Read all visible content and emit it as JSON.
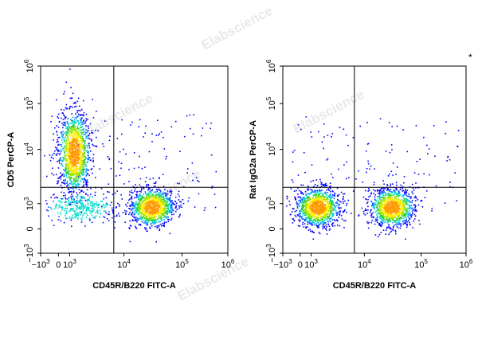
{
  "watermark": "Elabscience",
  "colors": {
    "density": [
      "#0000ff",
      "#0055ff",
      "#00aaff",
      "#00ddcc",
      "#33cc33",
      "#99e600",
      "#ffee00",
      "#ff9900",
      "#ff3300"
    ],
    "gate": "#000000",
    "frame": "#000000"
  },
  "footnote_mark": "*",
  "chart_data": [
    {
      "type": "scatter",
      "title": "",
      "xlabel": "CD45R/B220 FITC-A",
      "ylabel": "CD5 PerCP-A",
      "x_scale": "biexponential",
      "y_scale": "biexponential",
      "x_ticks": [
        {
          "base": "−10",
          "exp": "3"
        },
        {
          "base": "0",
          "exp": ""
        },
        {
          "base": "10",
          "exp": "3"
        },
        {
          "base": "10",
          "exp": "4"
        },
        {
          "base": "10",
          "exp": "5"
        },
        {
          "base": "10",
          "exp": "6"
        }
      ],
      "y_ticks": [
        {
          "base": "−10",
          "exp": "3"
        },
        {
          "base": "0",
          "exp": ""
        },
        {
          "base": "10",
          "exp": "3"
        },
        {
          "base": "10",
          "exp": "4"
        },
        {
          "base": "10",
          "exp": "5"
        },
        {
          "base": "10",
          "exp": "6"
        }
      ],
      "quadrant_gate": {
        "x": 6500,
        "y": 2000
      },
      "populations": [
        {
          "name": "",
          "x_center": 1200,
          "y_center": 9000,
          "spread": "tall",
          "density": "high"
        },
        {
          "name": "",
          "x_center": 1500,
          "y_center": 300,
          "spread": "wide",
          "density": "low"
        },
        {
          "name": "",
          "x_center": 30000,
          "y_center": 300,
          "spread": "round",
          "density": "high"
        }
      ],
      "legend": "none",
      "grid": false
    },
    {
      "type": "scatter",
      "title": "",
      "xlabel": "CD45R/B220 FITC-A",
      "ylabel": "Rat IgG2a PerCP-A",
      "x_scale": "biexponential",
      "y_scale": "biexponential",
      "x_ticks": [
        {
          "base": "−10",
          "exp": "3"
        },
        {
          "base": "0",
          "exp": ""
        },
        {
          "base": "10",
          "exp": "3"
        },
        {
          "base": "10",
          "exp": "4"
        },
        {
          "base": "10",
          "exp": "5"
        },
        {
          "base": "10",
          "exp": "6"
        }
      ],
      "y_ticks": [
        {
          "base": "−10",
          "exp": "3"
        },
        {
          "base": "0",
          "exp": ""
        },
        {
          "base": "10",
          "exp": "3"
        },
        {
          "base": "10",
          "exp": "4"
        },
        {
          "base": "10",
          "exp": "5"
        },
        {
          "base": "10",
          "exp": "6"
        }
      ],
      "quadrant_gate": {
        "x": 6500,
        "y": 2000
      },
      "populations": [
        {
          "name": "",
          "x_center": 1300,
          "y_center": 300,
          "spread": "round",
          "density": "high"
        },
        {
          "name": "",
          "x_center": 30000,
          "y_center": 300,
          "spread": "round",
          "density": "high"
        }
      ],
      "legend": "none",
      "grid": false
    }
  ]
}
